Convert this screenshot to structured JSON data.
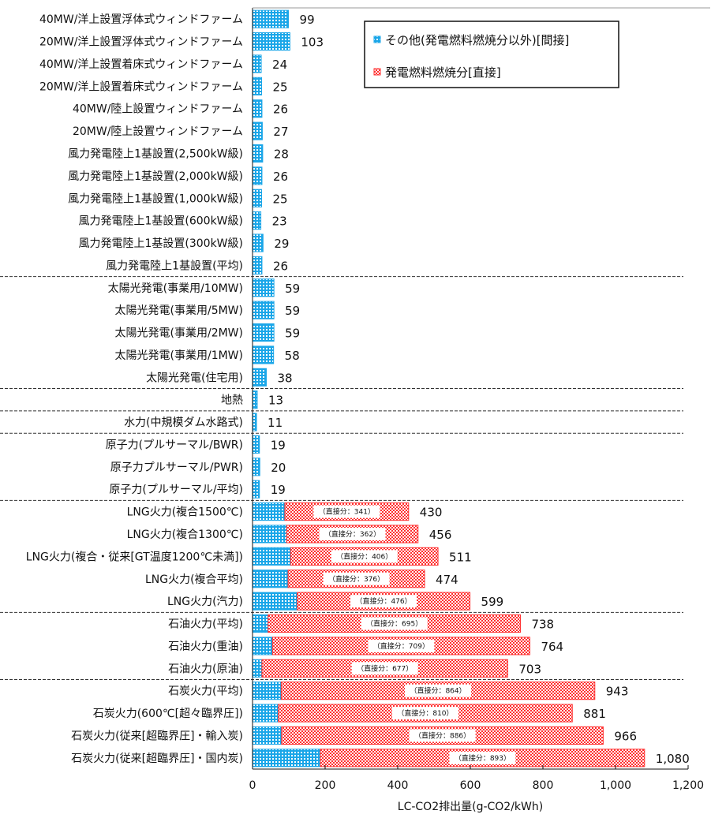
{
  "chart_data": {
    "type": "bar",
    "orientation": "horizontal",
    "stacked": true,
    "title": "",
    "xlabel": "LC-CO2排出量(g-CO2/kWh)",
    "ylabel": "",
    "xlim": [
      0,
      1200
    ],
    "xticks": [
      "0",
      "200",
      "400",
      "600",
      "800",
      "1,000",
      "1,200"
    ],
    "grid": false,
    "legend_position": "top-right",
    "colors": {
      "indirect": "#1aa6e8",
      "direct": "#ff3030"
    },
    "categories": [
      "40MW/洋上設置浮体式ウィンドファーム",
      "20MW/洋上設置浮体式ウィンドファーム",
      "40MW/洋上設置着床式ウィンドファーム",
      "20MW/洋上設置着床式ウィンドファーム",
      "40MW/陸上設置ウィンドファーム",
      "20MW/陸上設置ウィンドファーム",
      "風力発電陸上1基設置(2,500kW級)",
      "風力発電陸上1基設置(2,000kW級)",
      "風力発電陸上1基設置(1,000kW級)",
      "風力発電陸上1基設置(600kW級)",
      "風力発電陸上1基設置(300kW級)",
      "風力発電陸上1基設置(平均)",
      "太陽光発電(事業用/10MW)",
      "太陽光発電(事業用/5MW)",
      "太陽光発電(事業用/2MW)",
      "太陽光発電(事業用/1MW)",
      "太陽光発電(住宅用)",
      "地熱",
      "水力(中規模ダム水路式)",
      "原子力(プルサーマル/BWR)",
      "原子力プルサーマル/PWR)",
      "原子力(プルサーマル/平均)",
      "LNG火力(複合1500℃)",
      "LNG火力(複合1300℃)",
      "LNG火力(複合・従来[GT温度1200℃未満])",
      "LNG火力(複合平均)",
      "LNG火力(汽力)",
      "石油火力(平均)",
      "石油火力(重油)",
      "石油火力(原油)",
      "石炭火力(平均)",
      "石炭火力(600℃[超々臨界圧])",
      "石炭火力(従来[超臨界圧]・輸入炭)",
      "石炭火力(従来[超臨界圧]・国内炭)"
    ],
    "series": [
      {
        "name": "その他(発電燃料燃焼分以外)[間接]",
        "values": [
          99,
          103,
          24,
          25,
          26,
          27,
          28,
          26,
          25,
          23,
          29,
          26,
          59,
          59,
          59,
          58,
          38,
          13,
          11,
          19,
          20,
          19,
          89,
          94,
          105,
          98,
          123,
          43,
          55,
          26,
          79,
          71,
          80,
          187
        ]
      },
      {
        "name": "発電燃料燃焼分[直接]",
        "values": [
          0,
          0,
          0,
          0,
          0,
          0,
          0,
          0,
          0,
          0,
          0,
          0,
          0,
          0,
          0,
          0,
          0,
          0,
          0,
          0,
          0,
          0,
          341,
          362,
          406,
          376,
          476,
          695,
          709,
          677,
          864,
          810,
          886,
          893
        ]
      }
    ],
    "totals": [
      "99",
      "103",
      "24",
      "25",
      "26",
      "27",
      "28",
      "26",
      "25",
      "23",
      "29",
      "26",
      "59",
      "59",
      "59",
      "58",
      "38",
      "13",
      "11",
      "19",
      "20",
      "19",
      "430",
      "456",
      "511",
      "474",
      "599",
      "738",
      "764",
      "703",
      "943",
      "881",
      "966",
      "1,080"
    ],
    "direct_labels": [
      "",
      "",
      "",
      "",
      "",
      "",
      "",
      "",
      "",
      "",
      "",
      "",
      "",
      "",
      "",
      "",
      "",
      "",
      "",
      "",
      "",
      "",
      "（直接分：341）",
      "（直接分：362）",
      "（直接分：406）",
      "（直接分：376）",
      "（直接分：476）",
      "（直接分：695）",
      "（直接分：709）",
      "（直接分：677）",
      "（直接分：864）",
      "（直接分：810）",
      "（直接分：886）",
      "（直接分：893）"
    ],
    "group_breaks_after": [
      "風力発電陸上1基設置(平均)",
      "太陽光発電(住宅用)",
      "地熱",
      "水力(中規模ダム水路式)",
      "原子力(プルサーマル/平均)",
      "LNG火力(汽力)",
      "石油火力(原油)"
    ]
  }
}
